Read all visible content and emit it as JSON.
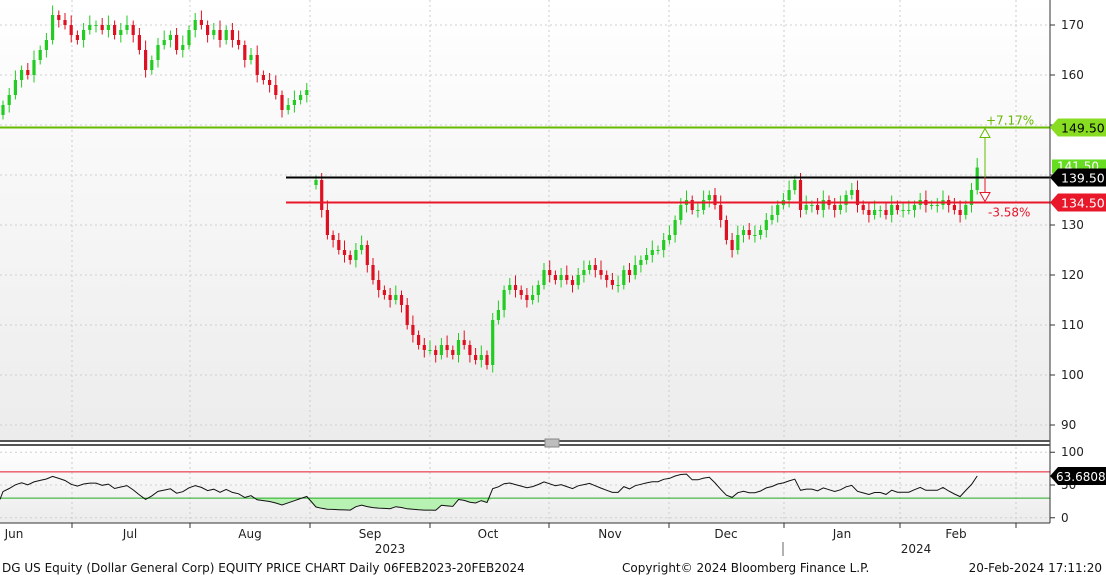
{
  "chart_data": [
    {
      "type": "candlestick",
      "title": "DG US Equity (Dollar General Corp) EQUITY PRICE CHART",
      "frequency": "Daily",
      "range": "06FEB2023-20FEB2024",
      "ylim": [
        87,
        175
      ],
      "yticks": [
        90,
        100,
        110,
        120,
        130,
        140,
        150,
        160,
        170
      ],
      "x_labels": [
        "Jun",
        "Jul",
        "Aug",
        "Sep",
        "Oct",
        "Nov",
        "Dec",
        "Jan",
        "Feb"
      ],
      "year_labels": [
        "2023",
        "2024"
      ],
      "closes_segment1": [
        154,
        156,
        159,
        161,
        160,
        163,
        165,
        167,
        172,
        171,
        170,
        168,
        167,
        169,
        170,
        170,
        169,
        170,
        168,
        169,
        170,
        168,
        165,
        161,
        163,
        166,
        167,
        168,
        165,
        166,
        169,
        171,
        170,
        168,
        169,
        167,
        169,
        167,
        166,
        163,
        164,
        160,
        159,
        158,
        156,
        153,
        154,
        155,
        156,
        157
      ],
      "closes_segment2": [
        139,
        133,
        128,
        127,
        125,
        124,
        123,
        125,
        126,
        122,
        119,
        117,
        116,
        115,
        116,
        114,
        110,
        108,
        106,
        105,
        105,
        104,
        106,
        105,
        104,
        107,
        106,
        104,
        103,
        104,
        102,
        111,
        113,
        117,
        118,
        117,
        116,
        115,
        116,
        118,
        121,
        120,
        119,
        120,
        119,
        118,
        120,
        121,
        122,
        121,
        120,
        119,
        118,
        118,
        121,
        120,
        122,
        123,
        124,
        125,
        125,
        127,
        128,
        131,
        134,
        135,
        133,
        133,
        135,
        136,
        134,
        131,
        127,
        125,
        128,
        129,
        128,
        128,
        129,
        131,
        132,
        134,
        135,
        137,
        139,
        133,
        134,
        134,
        133,
        135,
        134,
        133,
        134,
        136,
        137,
        134,
        133,
        132,
        133,
        133,
        132,
        134,
        133,
        133,
        133,
        134,
        135,
        134,
        134,
        134,
        135,
        134,
        133,
        132,
        134,
        137,
        141.5
      ],
      "levels": [
        {
          "value": 149.5,
          "label": "149.50",
          "color": "#66bb00",
          "badge_bg": "#88dd22"
        },
        {
          "value": 139.5,
          "label": "139.50",
          "color": "#000000",
          "badge_bg": "#000000"
        },
        {
          "value": 134.5,
          "label": "134.50",
          "color": "#e8172a",
          "badge_bg": "#e8172a"
        }
      ],
      "last_price_label": "141.50",
      "upside": {
        "label": "+7.17%",
        "from": 139.5,
        "to": 149.5
      },
      "downside": {
        "label": "-3.58%",
        "from": 139.5,
        "to": 134.5
      }
    },
    {
      "type": "line",
      "series_role": "oscillator",
      "ylim": [
        -8,
        108
      ],
      "yticks": [
        0,
        50,
        100
      ],
      "overbought": 70,
      "oversold": 30,
      "last_value_label": "63.6808"
    }
  ],
  "footer": {
    "left": "DG US Equity (Dollar General Corp) EQUITY PRICE CHART  Daily 06FEB2023-20FEB2024",
    "center": "Copyright© 2024 Bloomberg Finance L.P.",
    "right": "20-Feb-2024 17:11:20"
  },
  "colors": {
    "up": "#22cc22",
    "down": "#dd1122",
    "osc_fill": "#b7f2b3"
  }
}
